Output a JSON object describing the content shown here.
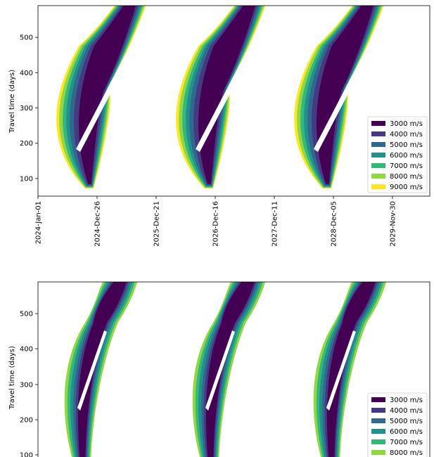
{
  "chart_data": [
    {
      "type": "contour",
      "ylabel": "Travel time (days)",
      "ylim": [
        50,
        590
      ],
      "yticks": [
        100,
        200,
        300,
        400,
        500
      ],
      "xlim": [
        "2024-Jan-01",
        "2030-Jun-01"
      ],
      "xticks": [
        "2024-Jan-01",
        "2024-Dec-26",
        "2025-Dec-21",
        "2026-Dec-16",
        "2027-Dec-11",
        "2028-Dec-05",
        "2029-Nov-30"
      ],
      "levels_m_per_s": [
        3000,
        4000,
        5000,
        6000,
        7000,
        8000,
        9000
      ],
      "legend_labels": [
        "3000 m/s",
        "4000 m/s",
        "5000 m/s",
        "6000 m/s",
        "7000 m/s",
        "8000 m/s",
        "9000 m/s"
      ],
      "level_colors": [
        "#440154",
        "#443a83",
        "#31688e",
        "#21918c",
        "#35b779",
        "#90d743",
        "#fde725"
      ],
      "legend_position": "lower-right",
      "launch_windows": [
        {
          "departure_center": "2024-Nov-10",
          "min_travel_days": 75
        },
        {
          "departure_center": "2026-Nov-25",
          "min_travel_days": 75
        },
        {
          "departure_center": "2028-Dec-20",
          "min_travel_days": 70
        }
      ]
    },
    {
      "type": "contour",
      "ylabel": "Travel time (days)",
      "ylim": [
        100,
        590
      ],
      "yticks": [
        100,
        200,
        300,
        400,
        500
      ],
      "levels_m_per_s": [
        3000,
        4000,
        5000,
        6000,
        7000,
        8000
      ],
      "legend_labels": [
        "3000 m/s",
        "4000 m/s",
        "5000 m/s",
        "6000 m/s",
        "7000 m/s",
        "8000 m/s"
      ],
      "level_colors": [
        "#440154",
        "#443a83",
        "#31688e",
        "#21918c",
        "#35b779",
        "#90d743"
      ],
      "legend_position": "lower-right",
      "launch_windows": [
        {
          "departure_center": "2024-Nov-01"
        },
        {
          "departure_center": "2026-Nov-20"
        },
        {
          "departure_center": "2028-Dec-10"
        }
      ]
    }
  ]
}
